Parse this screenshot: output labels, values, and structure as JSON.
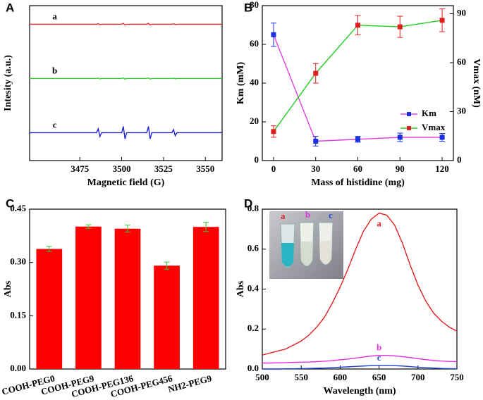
{
  "chart_data": [
    {
      "type": "line",
      "panel_label": "A",
      "x_label": "Magnetic field (G)",
      "y_label": "Intesity (a.u.)",
      "xlim": [
        3445,
        3560
      ],
      "xticks": [
        3475,
        3500,
        3525,
        3550
      ],
      "ylim": [
        0,
        100
      ],
      "legend": "inline",
      "x": [
        3445,
        3460,
        3475,
        3485,
        3486,
        3487,
        3488,
        3500,
        3501,
        3502,
        3503,
        3515,
        3516,
        3517,
        3518,
        3530,
        3531,
        3532,
        3533,
        3545,
        3560
      ],
      "series": [
        {
          "name": "a",
          "color": "#e8252b",
          "values": [
            88,
            88,
            88,
            88,
            88.4,
            87.7,
            88,
            88,
            88.6,
            87.5,
            88,
            88,
            88.6,
            87.5,
            88,
            88,
            88.3,
            87.8,
            88,
            88,
            88
          ]
        },
        {
          "name": "b",
          "color": "#2bd62b",
          "values": [
            53,
            53,
            53,
            53,
            53.3,
            52.7,
            53,
            53,
            53.4,
            52.6,
            53,
            53,
            53.4,
            52.6,
            53,
            53,
            53.2,
            52.8,
            53,
            53,
            53
          ]
        },
        {
          "name": "c",
          "color": "#1f1fd6",
          "values": [
            18,
            18,
            18,
            18,
            20.5,
            15.5,
            18,
            18,
            22,
            14,
            18,
            18,
            22,
            14,
            18,
            18,
            20,
            16,
            18,
            18,
            18
          ]
        }
      ]
    },
    {
      "type": "line",
      "panel_label": "B",
      "x_label": "Mass of histidine (mg)",
      "y_label": "Km (mM)",
      "y2_label": "Vmax (nM)",
      "xlim": [
        -8,
        128
      ],
      "xticks": [
        0,
        30,
        60,
        90,
        120
      ],
      "ylim": [
        0,
        80
      ],
      "yticks": [
        0,
        20,
        40,
        60,
        80
      ],
      "y2lim": [
        0,
        95
      ],
      "y2ticks": [
        0,
        30,
        60,
        90
      ],
      "legend": "center right",
      "x": [
        0,
        30,
        60,
        90,
        120
      ],
      "series": [
        {
          "name": "Km",
          "color": "#1a2fe0",
          "line_color": "#e040e0",
          "marker": "square",
          "values": [
            65,
            10,
            11,
            12,
            12
          ],
          "errors": [
            6,
            2.5,
            1.5,
            2.2,
            2
          ]
        },
        {
          "name": "Vmax",
          "axis": "y2",
          "color": "#e02020",
          "line_color": "#22cc22",
          "marker": "square",
          "values": [
            17.8,
            53.5,
            83,
            82,
            86
          ],
          "errors": [
            3.5,
            6,
            6,
            6.5,
            7
          ]
        }
      ]
    },
    {
      "type": "bar",
      "panel_label": "C",
      "y_label": "Abs",
      "categories": [
        "COOH-PEG0",
        "COOH-PEG9",
        "COOH-PEG136",
        "COOH-PEG456",
        "NH2-PEG9"
      ],
      "values": [
        0.338,
        0.401,
        0.395,
        0.291,
        0.4
      ],
      "errors": [
        0.007,
        0.005,
        0.01,
        0.01,
        0.013
      ],
      "color": "#ff0000",
      "error_color": "#33cc33",
      "ylim": [
        0,
        0.45
      ],
      "yticks": [
        {
          "value": 0,
          "label": "0.00"
        },
        0.15,
        {
          "value": 0.3,
          "label": "0.30"
        },
        0.45
      ]
    },
    {
      "type": "line",
      "panel_label": "D",
      "x_label": "Wavelength (nm)",
      "y_label": "Abs",
      "xlim": [
        500,
        750
      ],
      "xticks": [
        500,
        550,
        600,
        650,
        700,
        750
      ],
      "ylim": [
        0,
        0.8
      ],
      "yticks": [
        {
          "value": 0,
          "label": "0.0"
        },
        0.2,
        0.4,
        0.6,
        0.8
      ],
      "legend": "inline",
      "x": [
        500,
        510,
        520,
        530,
        540,
        550,
        560,
        570,
        580,
        590,
        600,
        610,
        620,
        630,
        640,
        650,
        660,
        670,
        680,
        690,
        700,
        710,
        720,
        730,
        740,
        750
      ],
      "series": [
        {
          "name": "a",
          "color": "#e02020",
          "values": [
            0.07,
            0.08,
            0.09,
            0.1,
            0.12,
            0.14,
            0.17,
            0.21,
            0.26,
            0.33,
            0.41,
            0.5,
            0.6,
            0.69,
            0.75,
            0.78,
            0.77,
            0.72,
            0.63,
            0.52,
            0.42,
            0.34,
            0.28,
            0.24,
            0.21,
            0.19
          ]
        },
        {
          "name": "b",
          "color": "#e030e0",
          "values": [
            0.03,
            0.03,
            0.031,
            0.032,
            0.033,
            0.034,
            0.035,
            0.037,
            0.039,
            0.042,
            0.046,
            0.05,
            0.055,
            0.06,
            0.065,
            0.068,
            0.068,
            0.066,
            0.062,
            0.057,
            0.052,
            0.047,
            0.043,
            0.04,
            0.038,
            0.037
          ]
        },
        {
          "name": "c",
          "color": "#1f3fd6",
          "values": [
            0,
            0,
            0,
            0.001,
            0.001,
            0.002,
            0.003,
            0.004,
            0.005,
            0.007,
            0.009,
            0.011,
            0.013,
            0.015,
            0.017,
            0.018,
            0.018,
            0.017,
            0.015,
            0.012,
            0.009,
            0.007,
            0.005,
            0.003,
            0.002,
            0.001
          ]
        }
      ]
    }
  ]
}
